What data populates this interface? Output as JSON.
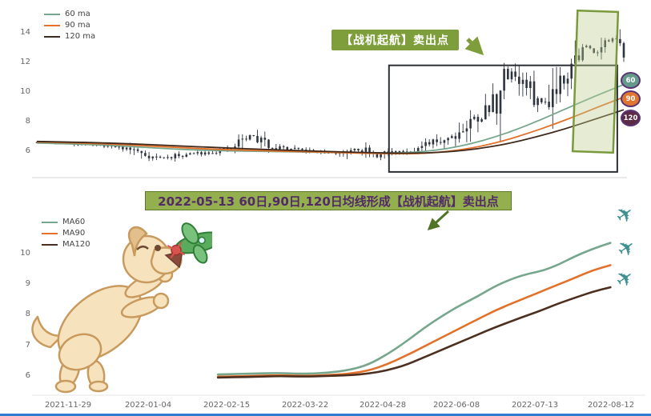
{
  "page": {
    "bottom_bar_color": "#2e7dd1"
  },
  "top_chart": {
    "annotation": {
      "text": "【战机起航】卖出点",
      "bg": "#7e9e3c",
      "fg": "#ffffff"
    },
    "badges": [
      {
        "label": "60",
        "bg": "#639a8a",
        "border": "#5a3472"
      },
      {
        "label": "90",
        "bg": "#e0762f",
        "border": "#5a3472"
      },
      {
        "label": "120",
        "bg": "#5b2a44",
        "border": "#5a3472"
      }
    ]
  },
  "banner": {
    "text": "2022-05-13 60日,90日,120日均线形成【战机起航】卖出点",
    "bg": "#93af4e",
    "fg": "#522a66",
    "border": "#5d7a2a"
  },
  "bottom_chart": {
    "plane_icon": "✈",
    "plane_color": "#3f9191"
  },
  "chart_data": [
    {
      "type": "candlestick",
      "title": "",
      "ylim": [
        4.2,
        15.5
      ],
      "y_ticks": [
        6,
        8,
        10,
        12,
        14
      ],
      "candle_color": "#2f3540",
      "legend_position": "top-left",
      "price_path": [
        [
          0,
          6.6
        ],
        [
          0.03,
          6.55
        ],
        [
          0.06,
          6.5
        ],
        [
          0.1,
          6.45
        ],
        [
          0.13,
          6.35
        ],
        [
          0.16,
          6.15
        ],
        [
          0.18,
          5.85
        ],
        [
          0.2,
          5.6
        ],
        [
          0.22,
          5.55
        ],
        [
          0.24,
          5.7
        ],
        [
          0.27,
          5.85
        ],
        [
          0.3,
          5.95
        ],
        [
          0.33,
          6.1
        ],
        [
          0.35,
          6.75
        ],
        [
          0.365,
          7.1
        ],
        [
          0.38,
          6.7
        ],
        [
          0.4,
          6.35
        ],
        [
          0.43,
          6.15
        ],
        [
          0.46,
          6.0
        ],
        [
          0.49,
          5.9
        ],
        [
          0.52,
          5.85
        ],
        [
          0.54,
          6.25
        ],
        [
          0.56,
          6.05
        ],
        [
          0.575,
          5.6
        ],
        [
          0.59,
          5.8
        ],
        [
          0.61,
          5.95
        ],
        [
          0.63,
          6.0
        ],
        [
          0.65,
          6.15
        ],
        [
          0.67,
          6.45
        ],
        [
          0.69,
          6.8
        ],
        [
          0.71,
          7.1
        ],
        [
          0.73,
          7.6
        ],
        [
          0.75,
          8.35
        ],
        [
          0.77,
          8.8
        ],
        [
          0.79,
          10.1
        ],
        [
          0.805,
          11.6
        ],
        [
          0.82,
          10.9
        ],
        [
          0.835,
          10.3
        ],
        [
          0.85,
          9.6
        ],
        [
          0.862,
          9.2
        ],
        [
          0.875,
          9.9
        ],
        [
          0.89,
          10.9
        ],
        [
          0.905,
          11.7
        ],
        [
          0.92,
          12.4
        ],
        [
          0.935,
          13.1
        ],
        [
          0.95,
          12.7
        ],
        [
          0.965,
          13.3
        ],
        [
          0.98,
          13.5
        ],
        [
          1,
          12.7
        ]
      ],
      "series": [
        {
          "name": "60 ma",
          "color": "#76a68d",
          "points": [
            [
              0,
              6.55
            ],
            [
              0.08,
              6.48
            ],
            [
              0.16,
              6.32
            ],
            [
              0.24,
              6.12
            ],
            [
              0.32,
              6.02
            ],
            [
              0.4,
              5.98
            ],
            [
              0.48,
              5.93
            ],
            [
              0.56,
              5.88
            ],
            [
              0.62,
              5.88
            ],
            [
              0.66,
              5.98
            ],
            [
              0.7,
              6.18
            ],
            [
              0.74,
              6.5
            ],
            [
              0.78,
              6.95
            ],
            [
              0.82,
              7.5
            ],
            [
              0.86,
              8.15
            ],
            [
              0.9,
              8.85
            ],
            [
              0.95,
              9.7
            ],
            [
              1,
              10.5
            ]
          ]
        },
        {
          "name": "90 ma",
          "color": "#e2712a",
          "points": [
            [
              0,
              6.62
            ],
            [
              0.08,
              6.55
            ],
            [
              0.16,
              6.42
            ],
            [
              0.24,
              6.25
            ],
            [
              0.32,
              6.1
            ],
            [
              0.4,
              6.02
            ],
            [
              0.48,
              5.95
            ],
            [
              0.56,
              5.85
            ],
            [
              0.64,
              5.82
            ],
            [
              0.68,
              5.9
            ],
            [
              0.72,
              6.08
            ],
            [
              0.76,
              6.35
            ],
            [
              0.8,
              6.75
            ],
            [
              0.84,
              7.25
            ],
            [
              0.88,
              7.8
            ],
            [
              0.92,
              8.4
            ],
            [
              0.96,
              9.05
            ],
            [
              1,
              9.65
            ]
          ]
        },
        {
          "name": "120 ma",
          "color": "#3f2a1d",
          "points": [
            [
              0,
              6.66
            ],
            [
              0.08,
              6.6
            ],
            [
              0.16,
              6.5
            ],
            [
              0.24,
              6.36
            ],
            [
              0.32,
              6.22
            ],
            [
              0.4,
              6.1
            ],
            [
              0.48,
              6.0
            ],
            [
              0.56,
              5.9
            ],
            [
              0.64,
              5.85
            ],
            [
              0.7,
              5.95
            ],
            [
              0.75,
              6.15
            ],
            [
              0.8,
              6.48
            ],
            [
              0.85,
              6.95
            ],
            [
              0.9,
              7.5
            ],
            [
              0.95,
              8.15
            ],
            [
              1,
              8.8
            ]
          ]
        }
      ],
      "highlight_box": {
        "x0": 0.6,
        "x1": 0.989,
        "p0": 4.6,
        "p1": 11.8,
        "color": "#2b2f33"
      },
      "green_box": {
        "x0": 0.917,
        "x1": 0.986,
        "color": "#7a9a3d",
        "fill": "rgba(186,206,140,0.38)"
      }
    },
    {
      "type": "line",
      "title": "",
      "ylim": [
        5.5,
        11.2
      ],
      "y_ticks": [
        6,
        7,
        8,
        9,
        10
      ],
      "x_ticks": [
        "2021-11-29",
        "2022-01-04",
        "2022-02-15",
        "2022-03-22",
        "2022-04-28",
        "2022-06-08",
        "2022-07-13",
        "2022-08-12"
      ],
      "legend_position": "top-left",
      "series": [
        {
          "name": "MA60",
          "color": "#76a68d",
          "points": [
            [
              0.3,
              6.05
            ],
            [
              0.36,
              6.08
            ],
            [
              0.4,
              6.1
            ],
            [
              0.44,
              6.07
            ],
            [
              0.48,
              6.1
            ],
            [
              0.52,
              6.2
            ],
            [
              0.55,
              6.38
            ],
            [
              0.58,
              6.7
            ],
            [
              0.61,
              7.1
            ],
            [
              0.64,
              7.55
            ],
            [
              0.67,
              7.95
            ],
            [
              0.7,
              8.3
            ],
            [
              0.73,
              8.6
            ],
            [
              0.76,
              8.95
            ],
            [
              0.79,
              9.2
            ],
            [
              0.815,
              9.35
            ],
            [
              0.84,
              9.45
            ],
            [
              0.865,
              9.65
            ],
            [
              0.89,
              9.9
            ],
            [
              0.92,
              10.15
            ],
            [
              0.95,
              10.35
            ]
          ]
        },
        {
          "name": "MA90",
          "color": "#e2712a",
          "points": [
            [
              0.3,
              5.98
            ],
            [
              0.36,
              6.0
            ],
            [
              0.4,
              6.03
            ],
            [
              0.44,
              6.0
            ],
            [
              0.48,
              6.02
            ],
            [
              0.52,
              6.08
            ],
            [
              0.55,
              6.18
            ],
            [
              0.58,
              6.38
            ],
            [
              0.61,
              6.65
            ],
            [
              0.64,
              6.95
            ],
            [
              0.67,
              7.25
            ],
            [
              0.7,
              7.55
            ],
            [
              0.73,
              7.85
            ],
            [
              0.76,
              8.15
            ],
            [
              0.79,
              8.4
            ],
            [
              0.815,
              8.6
            ],
            [
              0.84,
              8.8
            ],
            [
              0.865,
              9.0
            ],
            [
              0.89,
              9.2
            ],
            [
              0.92,
              9.45
            ],
            [
              0.95,
              9.62
            ]
          ]
        },
        {
          "name": "MA120",
          "color": "#4c2f1e",
          "points": [
            [
              0.3,
              5.95
            ],
            [
              0.36,
              5.97
            ],
            [
              0.4,
              6.0
            ],
            [
              0.44,
              5.98
            ],
            [
              0.48,
              6.0
            ],
            [
              0.52,
              6.03
            ],
            [
              0.55,
              6.08
            ],
            [
              0.58,
              6.18
            ],
            [
              0.61,
              6.35
            ],
            [
              0.64,
              6.6
            ],
            [
              0.67,
              6.85
            ],
            [
              0.7,
              7.1
            ],
            [
              0.73,
              7.35
            ],
            [
              0.76,
              7.6
            ],
            [
              0.79,
              7.82
            ],
            [
              0.815,
              8.0
            ],
            [
              0.84,
              8.18
            ],
            [
              0.865,
              8.38
            ],
            [
              0.89,
              8.55
            ],
            [
              0.92,
              8.75
            ],
            [
              0.95,
              8.9
            ]
          ]
        }
      ]
    }
  ]
}
